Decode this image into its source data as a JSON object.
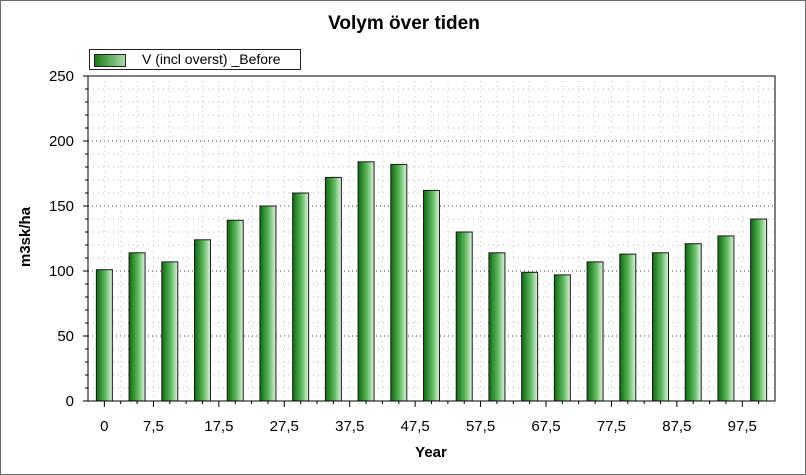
{
  "chart_data": {
    "type": "bar",
    "title": "Volym över tiden",
    "xlabel": "Year",
    "ylabel": "m3sk/ha",
    "ylim": [
      0,
      250
    ],
    "y_ticks": [
      0,
      50,
      100,
      150,
      200,
      250
    ],
    "x_tick_labels": [
      "0",
      "7,5",
      "17,5",
      "27,5",
      "37,5",
      "47,5",
      "57,5",
      "67,5",
      "77,5",
      "87,5",
      "97,5"
    ],
    "grid": true,
    "legend_position": "top-left",
    "series": [
      {
        "name": "V (incl overst) _Before",
        "color": "#1f8a1f",
        "x": [
          0,
          5,
          10,
          15,
          20,
          25,
          30,
          35,
          40,
          45,
          50,
          55,
          60,
          65,
          70,
          75,
          80,
          85,
          90,
          95,
          100
        ],
        "values": [
          101,
          114,
          107,
          124,
          139,
          150,
          160,
          172,
          184,
          182,
          162,
          130,
          114,
          99,
          97,
          107,
          113,
          114,
          121,
          127,
          140
        ]
      }
    ]
  }
}
